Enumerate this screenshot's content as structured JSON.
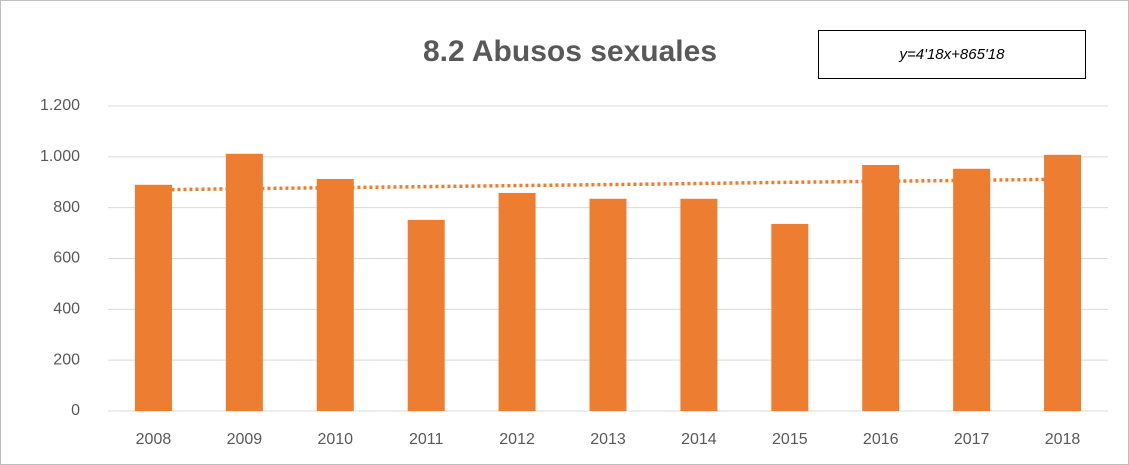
{
  "chart_data": {
    "type": "bar",
    "title": "8.2 Abusos sexuales",
    "annotation": "y=4'18x+865'18",
    "categories": [
      "2008",
      "2009",
      "2010",
      "2011",
      "2012",
      "2013",
      "2014",
      "2015",
      "2016",
      "2017",
      "2018"
    ],
    "values": [
      890,
      1012,
      913,
      752,
      858,
      835,
      835,
      736,
      968,
      953,
      1008
    ],
    "color": "#ed7d31",
    "trendline": {
      "color": "#ed7d31",
      "values": [
        869,
        874,
        878,
        882,
        886,
        890,
        894,
        899,
        903,
        907,
        911
      ]
    },
    "ylim": [
      0,
      1200
    ],
    "yticks": [
      0,
      200,
      400,
      600,
      800,
      {
        "value": 1000,
        "label": "1.000"
      },
      {
        "value": 1200,
        "label": "1.200"
      }
    ],
    "grid": true
  }
}
